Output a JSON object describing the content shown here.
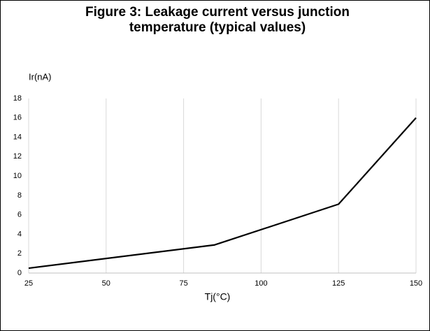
{
  "chart_data": {
    "type": "line",
    "title": "Figure 3: Leakage current versus junction temperature (typical values)",
    "y_label": "Ir(nA)",
    "x_label": "Tj(°C)",
    "x": [
      25,
      85,
      125,
      150
    ],
    "series": [
      {
        "name": "Ir",
        "color": "#000000",
        "values": [
          0.5,
          2.9,
          7.1,
          16
        ]
      }
    ],
    "xlim": [
      25,
      150
    ],
    "xticks": [
      25,
      50,
      75,
      100,
      125,
      150
    ],
    "ylim": [
      0,
      18
    ],
    "yticks": [
      0,
      2,
      4,
      6,
      8,
      10,
      12,
      14,
      16,
      18
    ],
    "grid": "x"
  }
}
